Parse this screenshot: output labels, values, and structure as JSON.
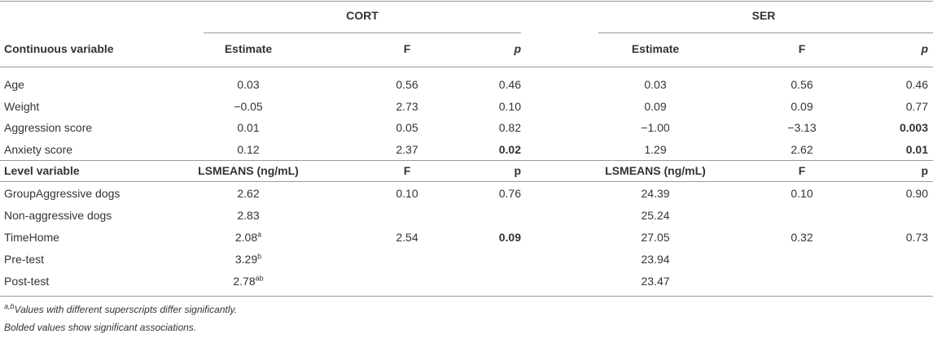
{
  "table": {
    "groups": [
      "CORT",
      "SER"
    ],
    "header": [
      "Continuous variable",
      "Estimate",
      "F",
      {
        "text": "p",
        "italic": true
      },
      "Estimate",
      "F",
      {
        "text": "p",
        "italic": true
      }
    ],
    "rows": [
      [
        "Age",
        "0.03",
        "0.56",
        "0.46",
        "0.03",
        "0.56",
        "0.46"
      ],
      [
        "Weight",
        "−0.05",
        "2.73",
        "0.10",
        "0.09",
        "0.09",
        "0.77"
      ],
      [
        "Aggression score",
        "0.01",
        "0.05",
        "0.82",
        "−1.00",
        "−3.13",
        {
          "text": "0.003",
          "bold": true
        }
      ],
      [
        "Anxiety score",
        "0.12",
        "2.37",
        {
          "text": "0.02",
          "bold": true
        },
        "1.29",
        "2.62",
        {
          "text": "0.01",
          "bold": true
        }
      ]
    ],
    "subheader": [
      "Level variable",
      "LSMEANS (ng/mL)",
      "F",
      "p",
      "LSMEANS (ng/mL)",
      "F",
      "p"
    ],
    "subrows": [
      [
        "GroupAggressive dogs",
        "2.62",
        "0.10",
        "0.76",
        "24.39",
        "0.10",
        "0.90"
      ],
      [
        "Non-aggressive dogs",
        "2.83",
        null,
        null,
        "25.24",
        null,
        null
      ],
      [
        "TimeHome",
        {
          "text": "2.08",
          "sup": "a"
        },
        "2.54",
        {
          "text": "0.09",
          "bold": true
        },
        "27.05",
        "0.32",
        "0.73"
      ],
      [
        "Pre-test",
        {
          "text": "3.29",
          "sup": "b"
        },
        null,
        null,
        "23.94",
        null,
        null
      ],
      [
        "Post-test",
        {
          "text": "2.78",
          "sup": "ab"
        },
        null,
        null,
        "23.47",
        null,
        null
      ]
    ]
  },
  "footnotes": [
    {
      "sup": "a,b",
      "text": "Values with different superscripts differ significantly."
    },
    {
      "text": "Bolded values show significant associations."
    }
  ]
}
